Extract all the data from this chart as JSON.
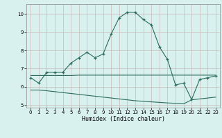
{
  "xlabel": "Humidex (Indice chaleur)",
  "bg_color": "#d8f0ee",
  "grid_color": "#c8b8b8",
  "line_color": "#2a6b5a",
  "xlim": [
    -0.5,
    23.5
  ],
  "ylim": [
    4.85,
    10.55
  ],
  "yticks": [
    5,
    6,
    7,
    8,
    9,
    10
  ],
  "xticks": [
    0,
    1,
    2,
    3,
    4,
    5,
    6,
    7,
    8,
    9,
    10,
    11,
    12,
    13,
    14,
    15,
    16,
    17,
    18,
    19,
    20,
    21,
    22,
    23
  ],
  "main_x": [
    0,
    1,
    2,
    3,
    4,
    5,
    6,
    7,
    8,
    9,
    10,
    11,
    12,
    13,
    14,
    15,
    16,
    17,
    18,
    19,
    20,
    21,
    22,
    23
  ],
  "main_y": [
    6.5,
    6.2,
    6.8,
    6.8,
    6.8,
    7.3,
    7.6,
    7.9,
    7.6,
    7.8,
    8.9,
    9.8,
    10.1,
    10.1,
    9.7,
    9.4,
    8.2,
    7.5,
    6.1,
    6.2,
    5.3,
    6.4,
    6.5,
    6.6
  ],
  "upper_x": [
    0,
    1,
    2,
    3,
    4,
    5,
    6,
    7,
    8,
    9,
    10,
    11,
    12,
    13,
    14,
    15,
    16,
    17,
    18,
    19,
    20,
    21,
    22,
    23
  ],
  "upper_y": [
    6.62,
    6.62,
    6.62,
    6.62,
    6.62,
    6.62,
    6.64,
    6.64,
    6.64,
    6.64,
    6.64,
    6.64,
    6.64,
    6.64,
    6.64,
    6.64,
    6.64,
    6.64,
    6.64,
    6.64,
    6.64,
    6.64,
    6.64,
    6.64
  ],
  "lower_x": [
    0,
    1,
    2,
    3,
    4,
    5,
    6,
    7,
    8,
    9,
    10,
    11,
    12,
    13,
    14,
    15,
    16,
    17,
    18,
    19,
    20,
    21,
    22,
    23
  ],
  "lower_y": [
    5.82,
    5.82,
    5.78,
    5.73,
    5.68,
    5.63,
    5.58,
    5.53,
    5.48,
    5.43,
    5.38,
    5.33,
    5.28,
    5.23,
    5.2,
    5.17,
    5.14,
    5.11,
    5.09,
    5.06,
    5.28,
    5.33,
    5.38,
    5.43
  ]
}
